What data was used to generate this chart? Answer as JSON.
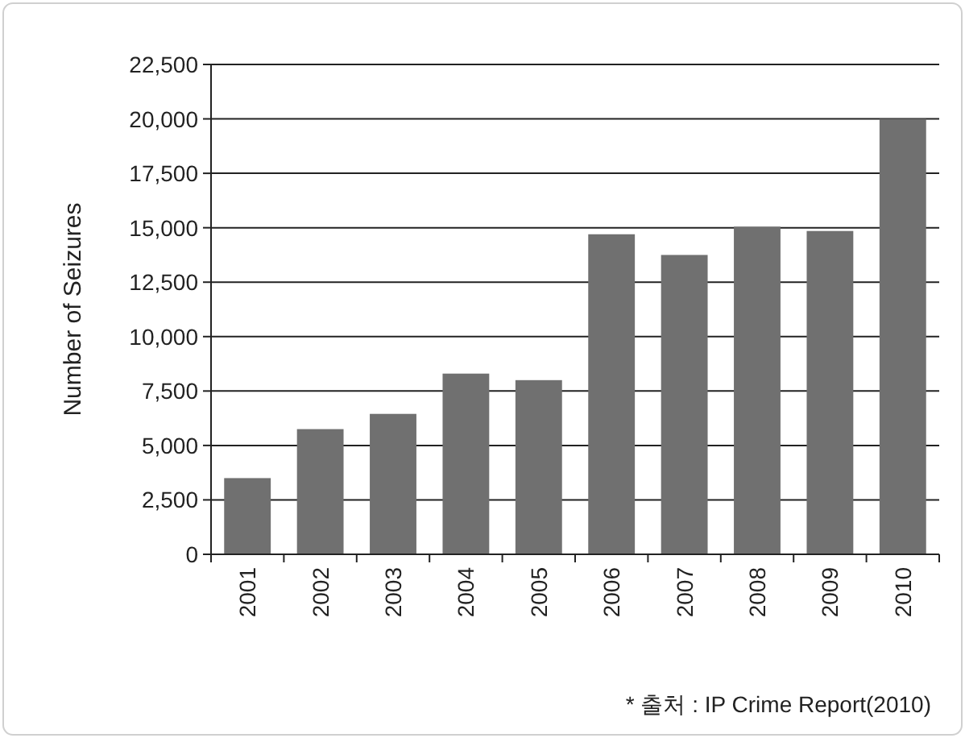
{
  "chart_data": {
    "type": "bar",
    "ylabel": "Number of Seizures",
    "categories": [
      "2001",
      "2002",
      "2003",
      "2004",
      "2005",
      "2006",
      "2007",
      "2008",
      "2009",
      "2010"
    ],
    "values": [
      3500,
      5750,
      6450,
      8300,
      8000,
      14700,
      13750,
      15050,
      14850,
      20000
    ],
    "color": "#707070",
    "ylim": [
      0,
      22500
    ],
    "yticks": [
      {
        "value": 0,
        "label": "0"
      },
      {
        "value": 2500,
        "label": "2,500"
      },
      {
        "value": 5000,
        "label": "5,000"
      },
      {
        "value": 7500,
        "label": "7,500"
      },
      {
        "value": 10000,
        "label": "10,000"
      },
      {
        "value": 12500,
        "label": "12,500"
      },
      {
        "value": 15000,
        "label": "15,000"
      },
      {
        "value": 17500,
        "label": "17,500"
      },
      {
        "value": 20000,
        "label": "20,000"
      },
      {
        "value": 22500,
        "label": "22,500"
      }
    ],
    "grid": "y",
    "annotations": [
      "* 출처 : IP Crime Report(2010)"
    ]
  }
}
